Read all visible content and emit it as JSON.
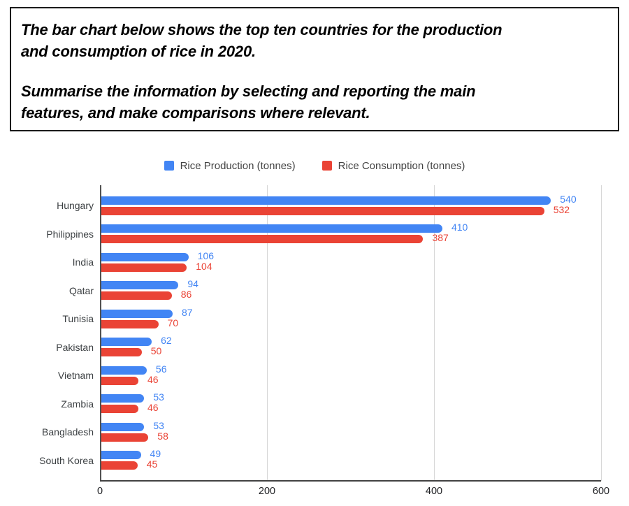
{
  "task": {
    "p1_line1": "The bar chart below shows the top ten countries for the production",
    "p1_line2": "and consumption of rice in 2020.",
    "p2_line1": "Summarise the information by selecting and reporting the main",
    "p2_line2": "features, and make comparisons where relevant."
  },
  "chart_data": {
    "type": "bar",
    "orientation": "horizontal",
    "title": "",
    "categories": [
      "Hungary",
      "Philippines",
      "India",
      "Qatar",
      "Tunisia",
      "Pakistan",
      "Vietnam",
      "Zambia",
      "Bangladesh",
      "South Korea"
    ],
    "series": [
      {
        "name": "Rice Production (tonnes)",
        "color": "#4285F4",
        "values": [
          540,
          410,
          106,
          94,
          87,
          62,
          56,
          53,
          53,
          49
        ]
      },
      {
        "name": "Rice Consumption (tonnes)",
        "color": "#EA4335",
        "values": [
          532,
          387,
          104,
          86,
          70,
          50,
          46,
          46,
          58,
          45
        ]
      }
    ],
    "xlim": [
      0,
      600
    ],
    "x_ticks": [
      0,
      200,
      400,
      600
    ],
    "grid": true,
    "legend_position": "top",
    "value_labels": true
  },
  "colors": {
    "production": "#4285F4",
    "consumption": "#EA4335",
    "gridline": "#d6d6d6",
    "axis": "#424242",
    "category_label": "#3c4043",
    "tick_label": "#202124",
    "legend_text": "#424242"
  }
}
